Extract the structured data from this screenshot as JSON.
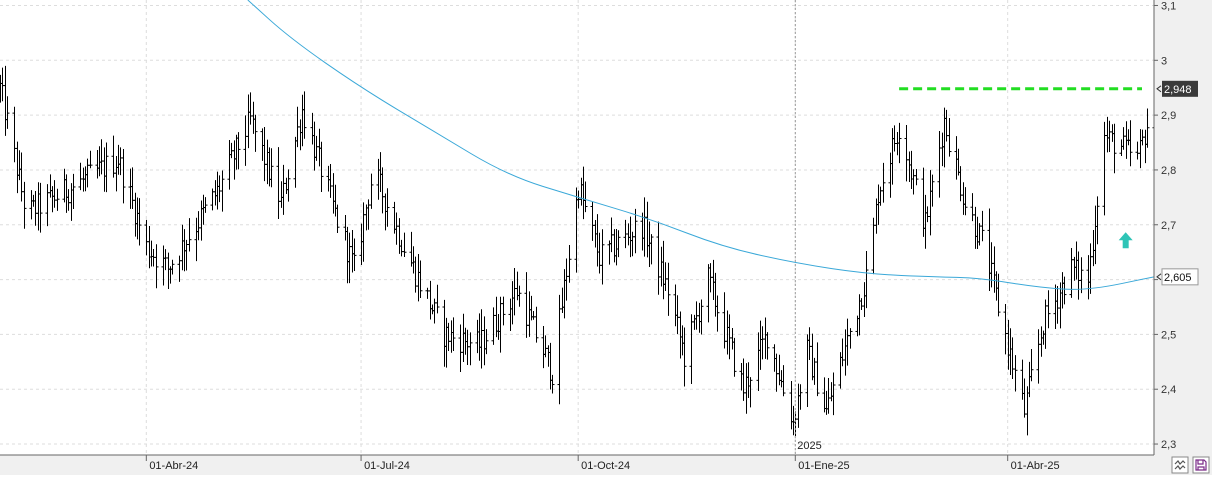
{
  "chart_data": {
    "type": "bar",
    "subtype": "ohlc",
    "title": "",
    "xlabel": "",
    "ylabel": "",
    "ylim": [
      2.28,
      3.11
    ],
    "y_ticks": [
      "3,1",
      "3",
      "2,9",
      "2,8",
      "2,7",
      "2,6",
      "2,5",
      "2,4",
      "2,3"
    ],
    "y_tick_values": [
      3.1,
      3.0,
      2.9,
      2.8,
      2.7,
      2.6,
      2.5,
      2.4,
      2.3
    ],
    "x_range": [
      "2024-01-30",
      "2025-06-02"
    ],
    "x_ticks": [
      {
        "label": "01-Abr-24",
        "date": "2024-04-01"
      },
      {
        "label": "01-Jul-24",
        "date": "2024-07-01"
      },
      {
        "label": "01-Oct-24",
        "date": "2024-10-01"
      },
      {
        "label": "01-Ene-25",
        "date": "2025-01-01"
      },
      {
        "label": "01-Abr-25",
        "date": "2025-04-01"
      }
    ],
    "year_marker": {
      "label": "2025",
      "date": "2025-01-01"
    },
    "grid": true,
    "last_price": {
      "label": "2,948",
      "value": 2.948
    },
    "ma_last": {
      "label": "2,605",
      "value": 2.605
    },
    "resistance_level": 2.948,
    "resistance_from": "2025-02-14",
    "colors": {
      "bars": "#000000",
      "moving_average": "#3aa8d8",
      "resistance": "#22dd22",
      "arrow": "#2ec4b6",
      "grid": "#dddddd",
      "axis_bg": "#f0f0f0"
    },
    "price_path": [
      [
        "2024-01-30",
        2.95
      ],
      [
        "2024-02-10",
        2.72
      ],
      [
        "2024-03-01",
        2.77
      ],
      [
        "2024-03-20",
        2.82
      ],
      [
        "2024-04-01",
        2.66
      ],
      [
        "2024-04-10",
        2.62
      ],
      [
        "2024-05-01",
        2.76
      ],
      [
        "2024-05-15",
        2.89
      ],
      [
        "2024-05-28",
        2.74
      ],
      [
        "2024-06-06",
        2.91
      ],
      [
        "2024-06-20",
        2.72
      ],
      [
        "2024-06-28",
        2.62
      ],
      [
        "2024-07-06",
        2.8
      ],
      [
        "2024-07-20",
        2.65
      ],
      [
        "2024-08-05",
        2.5
      ],
      [
        "2024-08-20",
        2.48
      ],
      [
        "2024-09-05",
        2.58
      ],
      [
        "2024-09-20",
        2.43
      ],
      [
        "2024-10-01",
        2.77
      ],
      [
        "2024-10-10",
        2.64
      ],
      [
        "2024-10-28",
        2.7
      ],
      [
        "2024-11-08",
        2.58
      ],
      [
        "2024-11-15",
        2.46
      ],
      [
        "2024-11-25",
        2.6
      ],
      [
        "2024-12-10",
        2.4
      ],
      [
        "2024-12-20",
        2.5
      ],
      [
        "2024-12-31",
        2.34
      ],
      [
        "2025-01-06",
        2.47
      ],
      [
        "2025-01-14",
        2.36
      ],
      [
        "2025-02-01",
        2.62
      ],
      [
        "2025-02-05",
        2.76
      ],
      [
        "2025-02-14",
        2.88
      ],
      [
        "2025-02-25",
        2.7
      ],
      [
        "2025-03-05",
        2.89
      ],
      [
        "2025-03-14",
        2.74
      ],
      [
        "2025-03-22",
        2.66
      ],
      [
        "2025-04-01",
        2.48
      ],
      [
        "2025-04-08",
        2.36
      ],
      [
        "2025-04-16",
        2.52
      ],
      [
        "2025-04-28",
        2.62
      ],
      [
        "2025-05-05",
        2.6
      ],
      [
        "2025-05-12",
        2.86
      ],
      [
        "2025-05-20",
        2.84
      ],
      [
        "2025-05-26",
        2.82
      ],
      [
        "2025-06-02",
        2.93
      ]
    ],
    "ma_path": [
      [
        "2024-05-14",
        3.11
      ],
      [
        "2024-06-01",
        3.04
      ],
      [
        "2024-07-01",
        2.95
      ],
      [
        "2024-08-01",
        2.87
      ],
      [
        "2024-09-01",
        2.79
      ],
      [
        "2024-10-01",
        2.75
      ],
      [
        "2024-11-01",
        2.71
      ],
      [
        "2024-12-01",
        2.66
      ],
      [
        "2025-01-01",
        2.63
      ],
      [
        "2025-02-01",
        2.61
      ],
      [
        "2025-03-01",
        2.605
      ],
      [
        "2025-03-20",
        2.603
      ],
      [
        "2025-04-15",
        2.585
      ],
      [
        "2025-05-05",
        2.58
      ],
      [
        "2025-06-02",
        2.605
      ]
    ]
  }
}
